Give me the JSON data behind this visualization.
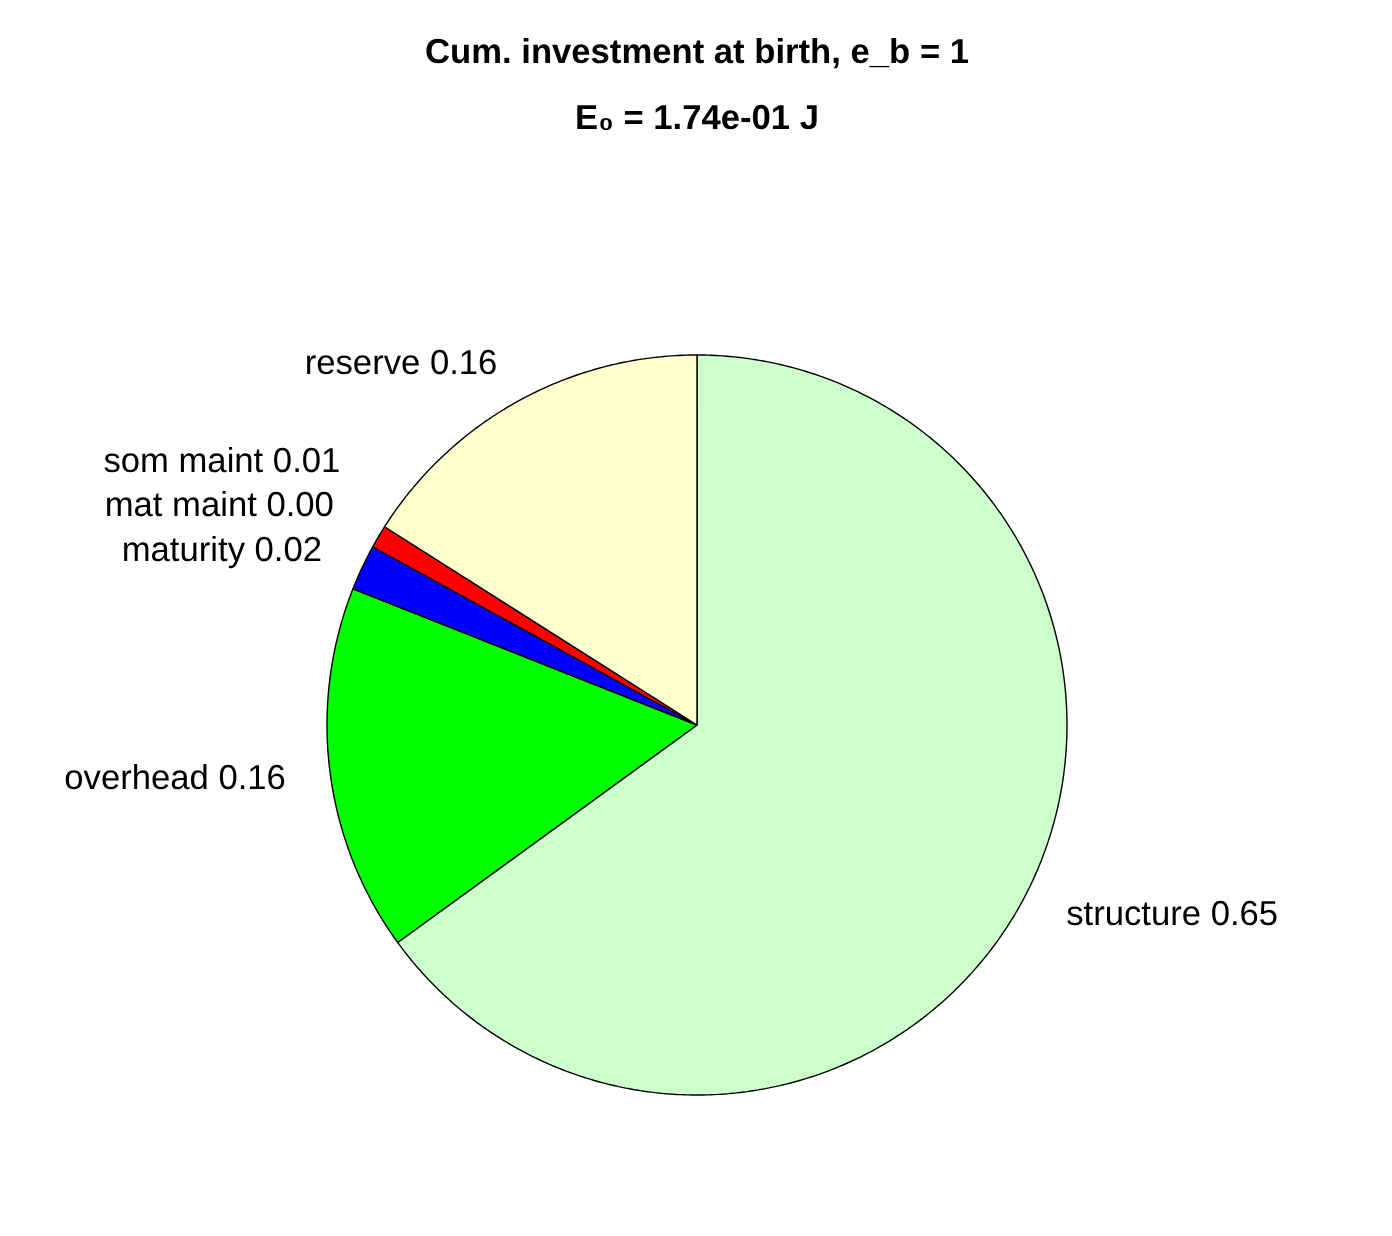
{
  "chart_data": {
    "type": "pie",
    "title": "Cum. investment at birth, e_b = 1",
    "subtitle": "E₀ = 1.74e-01 J",
    "categories": [
      "structure",
      "overhead",
      "maturity",
      "mat maint",
      "som maint",
      "reserve"
    ],
    "values": [
      0.65,
      0.16,
      0.02,
      0.0,
      0.01,
      0.16
    ],
    "value_labels": [
      "0.65",
      "0.16",
      "0.02",
      "0.00",
      "0.01",
      "0.16"
    ],
    "colors": [
      "#ccffcc",
      "#00ff00",
      "#0000ff",
      "#000000",
      "#ff0000",
      "#ffffcc"
    ]
  }
}
